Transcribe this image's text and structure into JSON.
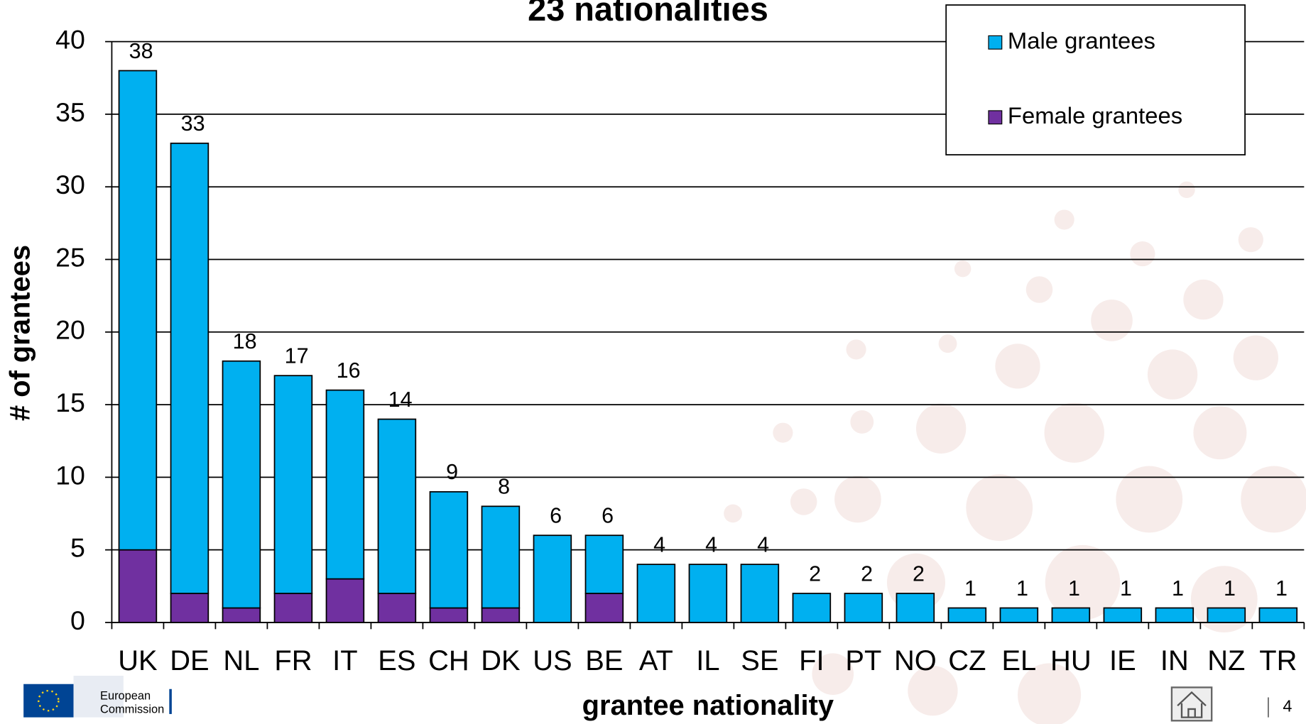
{
  "chart_data": {
    "type": "stacked-bar",
    "title": "23 nationalities",
    "x_label": "grantee nationality",
    "y_label": "# of grantees",
    "categories": [
      "UK",
      "DE",
      "NL",
      "FR",
      "IT",
      "ES",
      "CH",
      "DK",
      "US",
      "BE",
      "AT",
      "IL",
      "SE",
      "FI",
      "PT",
      "NO",
      "CZ",
      "EL",
      "HU",
      "IE",
      "IN",
      "NZ",
      "TR"
    ],
    "series": [
      {
        "name": "Male grantees",
        "color": "#00b0f0",
        "values": [
          33,
          31,
          17,
          15,
          13,
          12,
          8,
          7,
          6,
          4,
          4,
          4,
          4,
          2,
          2,
          2,
          1,
          1,
          1,
          1,
          1,
          1,
          1
        ]
      },
      {
        "name": "Female grantees",
        "color": "#7030a0",
        "values": [
          5,
          2,
          1,
          2,
          3,
          2,
          1,
          1,
          0,
          2,
          0,
          0,
          0,
          0,
          0,
          0,
          0,
          0,
          0,
          0,
          0,
          0,
          0
        ]
      }
    ],
    "total_labels": [
      38,
      33,
      18,
      17,
      16,
      14,
      9,
      8,
      6,
      6,
      4,
      4,
      4,
      2,
      2,
      2,
      1,
      1,
      1,
      1,
      1,
      1,
      1
    ],
    "ylim": [
      0,
      40
    ],
    "yticks": [
      0,
      5,
      10,
      15,
      20,
      25,
      30,
      35,
      40
    ],
    "grid": true,
    "legend": "top-right"
  },
  "footer": {
    "organisation": [
      "European",
      "Commission"
    ],
    "page_number": "4"
  }
}
